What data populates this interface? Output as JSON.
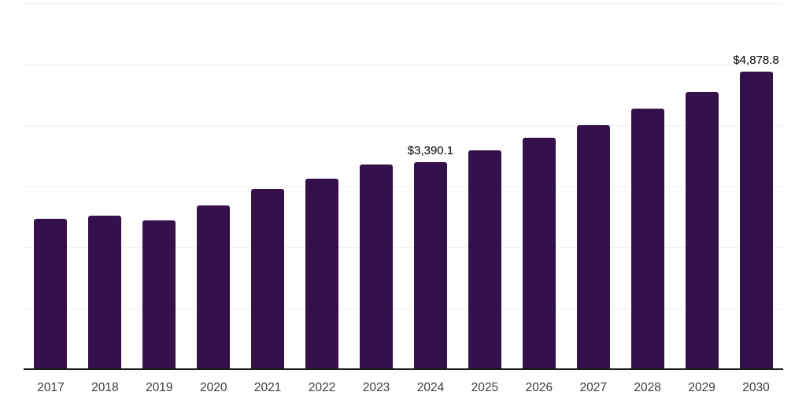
{
  "chart_data": {
    "type": "bar",
    "title": "",
    "xlabel": "",
    "ylabel": "",
    "categories": [
      "2017",
      "2018",
      "2019",
      "2020",
      "2021",
      "2022",
      "2023",
      "2024",
      "2025",
      "2026",
      "2027",
      "2028",
      "2029",
      "2030"
    ],
    "values": [
      2465,
      2515,
      2440,
      2690,
      2955,
      3120,
      3360,
      3390.1,
      3590,
      3800,
      4005,
      4270,
      4545,
      4878.8
    ],
    "data_labels": [
      {
        "category": "2024",
        "text": "$3,390.1"
      },
      {
        "category": "2030",
        "text": "$4,878.8"
      }
    ],
    "ylim": [
      0,
      6000
    ],
    "gridline_step": 1000,
    "grid": true,
    "legend": false,
    "y_axis_labels_visible": false,
    "colors": {
      "bar": "#35114B",
      "axis": "#1a1a1a",
      "gridline": "#f2f2f2",
      "tick_label": "#3d3d3d",
      "data_label": "#000000"
    }
  }
}
